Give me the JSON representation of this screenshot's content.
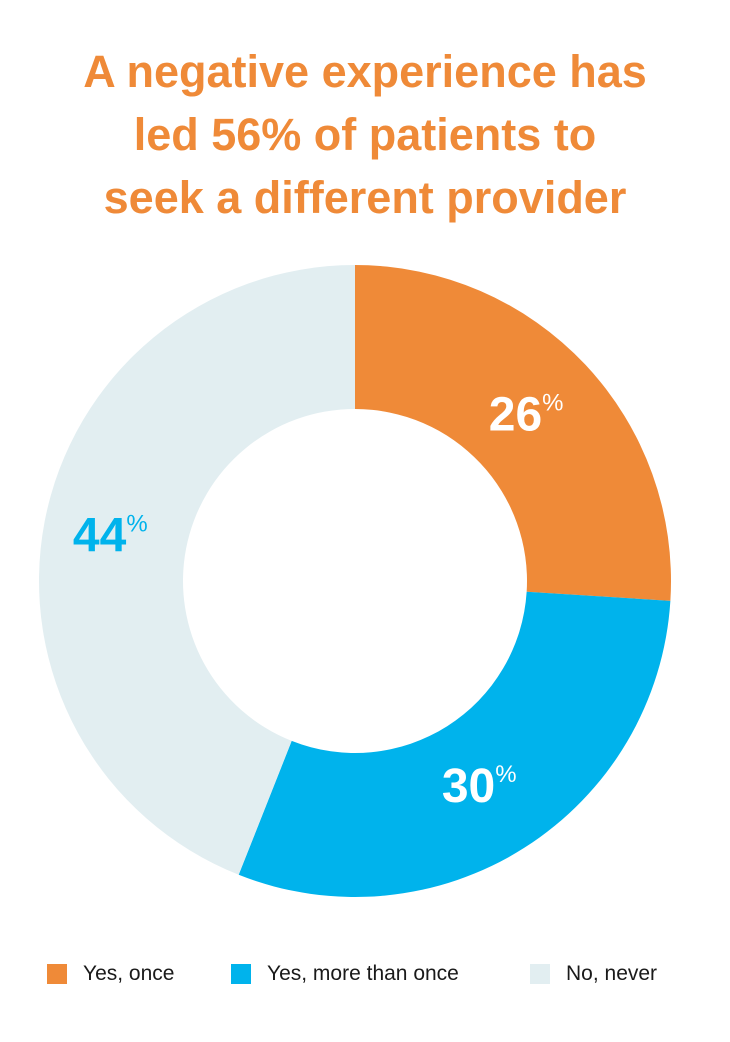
{
  "title_lines": [
    "A negative experience has",
    "led 56% of patients to",
    "seek a different provider"
  ],
  "chart_data": {
    "type": "pie",
    "title": "A negative experience has led 56% of patients to seek a different provider",
    "donut": true,
    "start": "12 o'clock, clockwise",
    "slices": [
      {
        "label": "Yes, once",
        "value": 26,
        "display": "26",
        "unit": "%",
        "color": "#ef8a38",
        "label_color": "#ffffff"
      },
      {
        "label": "Yes, more than once",
        "value": 30,
        "display": "30",
        "unit": "%",
        "color": "#00b3ec",
        "label_color": "#ffffff"
      },
      {
        "label": "No, never",
        "value": 44,
        "display": "44",
        "unit": "%",
        "color": "#e2eef1",
        "label_color": "#00b3ec"
      }
    ],
    "legend_position": "bottom"
  }
}
